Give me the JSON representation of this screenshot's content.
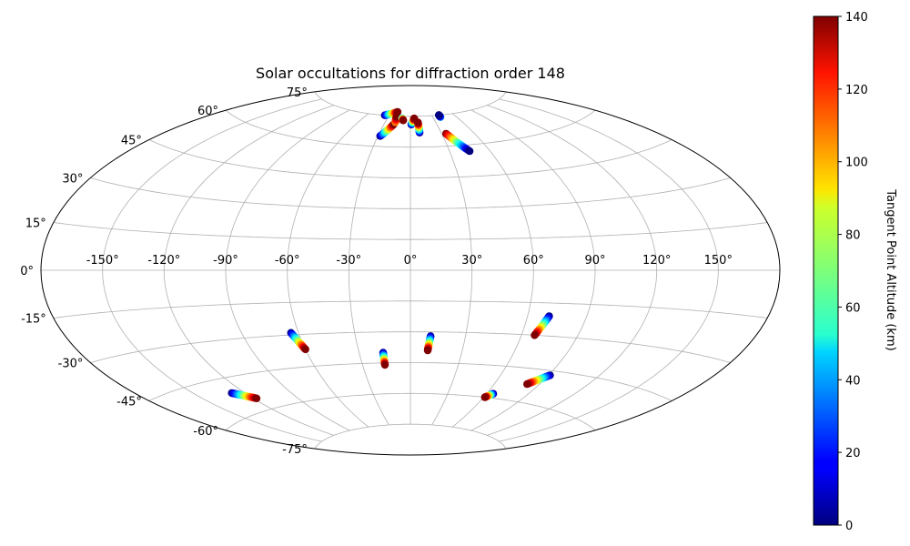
{
  "chart_data": {
    "type": "scatter",
    "projection": "aitoff",
    "title": "Solar occultations for diffraction order 148",
    "x_ticks": [
      "-150°",
      "-120°",
      "-90°",
      "-60°",
      "-30°",
      "0°",
      "30°",
      "60°",
      "90°",
      "120°",
      "150°"
    ],
    "y_ticks": [
      "75°",
      "60°",
      "45°",
      "30°",
      "15°",
      "0°",
      "-15°",
      "-30°",
      "-45°",
      "-60°",
      "-75°"
    ],
    "grid": true,
    "colorbar": {
      "label": "Tangent Point Altitude (km)",
      "colormap": "jet",
      "range": [
        0,
        140
      ],
      "ticks": [
        "0",
        "20",
        "40",
        "60",
        "80",
        "100",
        "120",
        "140"
      ]
    },
    "series": [
      {
        "lon_start": -36,
        "lat_start": 75,
        "lon_end": -20,
        "lat_end": 77,
        "alt_start": 0,
        "alt_end": 140
      },
      {
        "lon_start": -28,
        "lat_start": 65,
        "lon_end": -19,
        "lat_end": 71,
        "alt_start": 0,
        "alt_end": 140
      },
      {
        "lon_start": -18,
        "lat_start": 72,
        "lon_end": -19,
        "lat_end": 75,
        "alt_start": 100,
        "alt_end": 140
      },
      {
        "lon_start": -11,
        "lat_start": 74,
        "lon_end": -9,
        "lat_end": 73,
        "alt_start": 40,
        "alt_end": 140
      },
      {
        "lon_start": 1,
        "lat_start": 71,
        "lon_end": 5,
        "lat_end": 74,
        "alt_start": 0,
        "alt_end": 140
      },
      {
        "lon_start": 9,
        "lat_start": 67,
        "lon_end": 9,
        "lat_end": 72,
        "alt_start": 0,
        "alt_end": 140
      },
      {
        "lon_start": 40,
        "lat_start": 74,
        "lon_end": 40,
        "lat_end": 75,
        "alt_start": 40,
        "alt_end": 0
      },
      {
        "lon_start": 34,
        "lat_start": 66,
        "lon_end": 45,
        "lat_end": 57,
        "alt_start": 140,
        "alt_end": 0
      },
      {
        "lon_start": -64,
        "lat_start": -29,
        "lon_end": -60,
        "lat_end": -37,
        "alt_start": 0,
        "alt_end": 140
      },
      {
        "lon_start": -16,
        "lat_start": -40,
        "lon_end": -16,
        "lat_end": -46,
        "alt_start": 0,
        "alt_end": 140
      },
      {
        "lon_start": 11,
        "lat_start": -32,
        "lon_end": 10,
        "lat_end": -39,
        "alt_start": 0,
        "alt_end": 140
      },
      {
        "lon_start": 71,
        "lat_start": -21,
        "lon_end": 67,
        "lat_end": -30,
        "alt_start": 0,
        "alt_end": 140
      },
      {
        "lon_start": -128,
        "lat_start": -51,
        "lon_end": -118,
        "lat_end": -55,
        "alt_start": 0,
        "alt_end": 140
      },
      {
        "lon_start": 65,
        "lat_start": -58,
        "lon_end": 61,
        "lat_end": -60,
        "alt_start": 0,
        "alt_end": 140
      },
      {
        "lon_start": 91,
        "lat_start": -47,
        "lon_end": 82,
        "lat_end": -52,
        "alt_start": 0,
        "alt_end": 140
      }
    ]
  }
}
